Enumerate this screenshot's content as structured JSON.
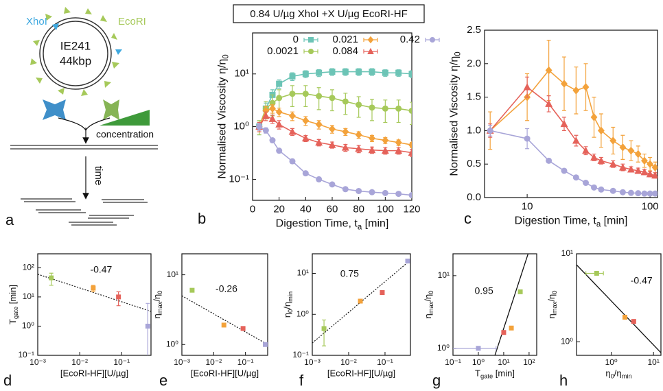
{
  "header": "0.84 U/µg XhoI +X U/µg EcoRI-HF",
  "diagram": {
    "label": "a",
    "xhoi": "XhoI",
    "ecori": "EcoRI",
    "plasmid": "IE241",
    "size": "44kbp",
    "concentration": "concentration",
    "time": "time"
  },
  "chart_data": [
    {
      "type": "line",
      "label": "b",
      "lines": true,
      "xlabel": [
        "Digestion Time, t",
        "a",
        " [min]"
      ],
      "ylabel": [
        "Normalised Viscosity η/η",
        "0"
      ],
      "x": [
        5,
        10,
        15,
        20,
        30,
        40,
        50,
        60,
        70,
        80,
        90,
        100,
        110,
        120
      ],
      "xlim": [
        0,
        120
      ],
      "xticks": [
        0,
        20,
        40,
        60,
        80,
        100,
        120
      ],
      "yscale": "log",
      "ylim": [
        0.04,
        60
      ],
      "yticks": [
        {
          "value": 0.1,
          "label": "10⁻¹"
        },
        {
          "value": 1,
          "label": "10⁰"
        },
        {
          "value": 10,
          "label": "10¹"
        }
      ],
      "legend": true,
      "series": [
        {
          "name": "0",
          "color": "#6cc4b6",
          "marker": "square",
          "values": [
            1,
            2.2,
            4,
            6.5,
            9,
            10,
            10.5,
            11,
            11,
            11,
            11,
            10.5,
            10.5,
            10
          ],
          "errors": [
            0.3,
            0.6,
            1,
            1.2,
            1.5,
            1.5,
            1.6,
            1.6,
            1.6,
            1.6,
            1.6,
            1.5,
            1.5,
            1.5
          ]
        },
        {
          "name": "0.0021",
          "color": "#a6c95a",
          "marker": "circle",
          "values": [
            1,
            2.2,
            2.8,
            3.5,
            4.2,
            4.2,
            3.8,
            3.5,
            3,
            2.6,
            2.3,
            2.2,
            2.2,
            2
          ],
          "errors": [
            0.3,
            0.8,
            1.2,
            1.5,
            1.8,
            1.8,
            1.7,
            1.5,
            1.3,
            1.1,
            1,
            1,
            1,
            0.9
          ]
        },
        {
          "name": "0.021",
          "color": "#f3a23b",
          "marker": "diamond",
          "values": [
            1,
            2,
            2.2,
            1.9,
            1.6,
            1.3,
            1.1,
            0.9,
            0.8,
            0.7,
            0.6,
            0.55,
            0.5,
            0.45
          ],
          "errors": [
            0.2,
            0.4,
            0.4,
            0.35,
            0.3,
            0.25,
            0.2,
            0.15,
            0.12,
            0.1,
            0.08,
            0.07,
            0.06,
            0.05
          ]
        },
        {
          "name": "0.084",
          "color": "#e5625a",
          "marker": "triangle",
          "values": [
            1,
            1.6,
            1.4,
            1.1,
            0.8,
            0.6,
            0.5,
            0.45,
            0.4,
            0.38,
            0.36,
            0.35,
            0.35,
            0.32
          ],
          "errors": [
            0.2,
            0.3,
            0.25,
            0.2,
            0.12,
            0.08,
            0.07,
            0.06,
            0.06,
            0.06,
            0.05,
            0.05,
            0.05,
            0.05
          ]
        },
        {
          "name": "0.42",
          "color": "#a8a5d8",
          "marker": "circle",
          "values": [
            1,
            0.85,
            0.55,
            0.35,
            0.22,
            0.13,
            0.1,
            0.08,
            0.065,
            0.06,
            0.057,
            0.055,
            0.053,
            0.05
          ],
          "errors": [
            0.15,
            0.1,
            0.05,
            0.03,
            0.02,
            0.01,
            0.008,
            0.006,
            0.005,
            0.005,
            0.004,
            0.004,
            0.004,
            0.004
          ]
        }
      ]
    },
    {
      "type": "line",
      "label": "c",
      "lines": true,
      "xlabel": [
        "Digestion Time, t",
        "a",
        " [min]"
      ],
      "ylabel": [
        "Normalised Viscosity η/η",
        "0"
      ],
      "x": [
        5,
        10,
        15,
        20,
        25,
        30,
        35,
        40,
        50,
        60,
        70,
        80,
        90,
        100,
        110
      ],
      "xscale": "log",
      "xlim": [
        4.5,
        115
      ],
      "xticks": [
        10,
        100
      ],
      "ylim": [
        0,
        2.5
      ],
      "yticks": [
        {
          "value": 0,
          "label": "0.0"
        },
        0.5,
        {
          "value": 1,
          "label": "1.0"
        },
        1.5,
        {
          "value": 2,
          "label": "2.0"
        },
        2.5
      ],
      "series": [
        {
          "color": "#f3a23b",
          "marker": "diamond",
          "values": [
            1,
            1.5,
            1.9,
            1.7,
            1.6,
            1.65,
            1.2,
            1,
            0.85,
            0.75,
            0.7,
            0.65,
            0.55,
            0.5,
            0.45
          ],
          "errors": [
            0.28,
            0.35,
            0.45,
            0.4,
            0.35,
            0.35,
            0.3,
            0.25,
            0.2,
            0.18,
            0.15,
            0.12,
            0.1,
            0.1,
            0.08
          ]
        },
        {
          "color": "#e5625a",
          "marker": "triangle",
          "values": [
            1,
            1.65,
            1.4,
            1.1,
            0.85,
            0.7,
            0.6,
            0.55,
            0.5,
            0.45,
            0.42,
            0.4,
            0.38,
            0.35,
            0.33
          ],
          "errors": [
            0.1,
            0.15,
            0.12,
            0.1,
            0.08,
            0.06,
            0.05,
            0.05,
            0.05,
            0.05,
            0.04,
            0.04,
            0.04,
            0.04,
            0.04
          ]
        },
        {
          "color": "#a8a5d8",
          "marker": "circle",
          "values": [
            1,
            0.88,
            0.55,
            0.4,
            0.3,
            0.22,
            0.15,
            0.12,
            0.1,
            0.08,
            0.07,
            0.065,
            0.06,
            0.06,
            0.06
          ],
          "errors": [
            0.08,
            0.15,
            0.03,
            0.02,
            0.02,
            0.01,
            0.01,
            0.01,
            0.01,
            0.01,
            0.01,
            0.01,
            0.01,
            0.01,
            0.01
          ]
        }
      ]
    },
    {
      "type": "scatter",
      "label": "d",
      "marker": "square",
      "xlabel": [
        "[EcoRI-HF][U/µg]"
      ],
      "ylabel": [
        "T",
        "gate",
        " [min]"
      ],
      "xscale": "log",
      "xlim": [
        0.001,
        0.5
      ],
      "xticks": [
        {
          "value": 0.001,
          "label": "10⁻³"
        },
        {
          "value": 0.01,
          "label": "10⁻²"
        },
        {
          "value": 0.1,
          "label": "10⁻¹"
        }
      ],
      "yscale": "log",
      "ylim": [
        0.1,
        300
      ],
      "yticks": [
        {
          "value": 0.1,
          "label": "10⁻¹"
        },
        {
          "value": 1,
          "label": "10⁰"
        },
        {
          "value": 10,
          "label": "10¹"
        },
        {
          "value": 100,
          "label": "10²"
        }
      ],
      "x": [
        0.0021,
        0.021,
        0.084,
        0.42
      ],
      "values": [
        45,
        20,
        10,
        1
      ],
      "errors": [
        20,
        5,
        5,
        5
      ],
      "colors": [
        "#a6c95a",
        "#f3a23b",
        "#e5625a",
        "#a8a5d8"
      ],
      "fit": {
        "x": [
          0.001,
          0.5
        ],
        "values": [
          60,
          3.2
        ]
      },
      "fit_style": "dotted",
      "annotation": "-0.47"
    },
    {
      "type": "scatter",
      "label": "e",
      "marker": "square",
      "xlabel": [
        "[EcoRI-HF][U/µg]"
      ],
      "ylabel": [
        "η",
        "max",
        "/η",
        "0"
      ],
      "xscale": "log",
      "xlim": [
        0.001,
        0.5
      ],
      "xticks": [
        {
          "value": 0.001,
          "label": "10⁻³"
        },
        {
          "value": 0.01,
          "label": "10⁻²"
        },
        {
          "value": 0.1,
          "label": "10⁻¹"
        }
      ],
      "yscale": "log",
      "ylim": [
        0.7,
        20
      ],
      "yticks": [
        {
          "value": 1,
          "label": "10⁰"
        },
        {
          "value": 10,
          "label": "10¹"
        }
      ],
      "x": [
        0.0021,
        0.021,
        0.084,
        0.42
      ],
      "values": [
        6,
        1.9,
        1.7,
        1
      ],
      "colors": [
        "#a6c95a",
        "#f3a23b",
        "#e5625a",
        "#a8a5d8"
      ],
      "fit": {
        "x": [
          0.001,
          0.5
        ],
        "values": [
          5,
          1
        ]
      },
      "fit_style": "dotted",
      "annotation": "-0.26"
    },
    {
      "type": "scatter",
      "label": "f",
      "marker": "square",
      "xlabel": [
        "[EcoRI-HF][U/µg]"
      ],
      "ylabel": [
        "η",
        "0",
        "/η",
        "min"
      ],
      "xscale": "log",
      "xlim": [
        0.001,
        0.5
      ],
      "xticks": [
        {
          "value": 0.001,
          "label": "10⁻³"
        },
        {
          "value": 0.01,
          "label": "10⁻²"
        },
        {
          "value": 0.1,
          "label": "10⁻¹"
        }
      ],
      "yscale": "log",
      "ylim": [
        0.1,
        30
      ],
      "yticks": [
        {
          "value": 0.1,
          "label": "10⁻¹"
        },
        {
          "value": 1,
          "label": "10⁰"
        },
        {
          "value": 10,
          "label": "10¹"
        }
      ],
      "x": [
        0.0021,
        0.021,
        0.084,
        0.42
      ],
      "values": [
        0.45,
        2.1,
        3.4,
        20
      ],
      "errors": [
        0.28,
        null,
        null,
        null
      ],
      "colors": [
        "#a6c95a",
        "#f3a23b",
        "#e5625a",
        "#a8a5d8"
      ],
      "fit": {
        "x": [
          0.001,
          0.5
        ],
        "values": [
          0.2,
          21
        ]
      },
      "fit_style": "dotted",
      "annotation": "0.75"
    },
    {
      "type": "scatter",
      "label": "g",
      "marker": "square",
      "xlabel": [
        "T",
        "gate",
        " [min]"
      ],
      "ylabel": [
        "η",
        "max",
        "/η",
        "0"
      ],
      "xscale": "log",
      "xlim": [
        0.1,
        200
      ],
      "xticks": [
        {
          "value": 0.1,
          "label": "10⁻¹"
        },
        {
          "value": 1,
          "label": "10⁰"
        },
        {
          "value": 10,
          "label": "10¹"
        },
        {
          "value": 100,
          "label": "10²"
        }
      ],
      "yscale": "log",
      "ylim": [
        0.8,
        20
      ],
      "yticks": [
        {
          "value": 1,
          "label": "10⁰"
        },
        {
          "value": 10,
          "label": "10¹"
        }
      ],
      "x": [
        1,
        10,
        20,
        45
      ],
      "values": [
        1,
        1.65,
        1.9,
        6
      ],
      "xerrors": [
        4,
        null,
        null,
        null
      ],
      "colors": [
        "#a8a5d8",
        "#e5625a",
        "#f3a23b",
        "#a6c95a"
      ],
      "fit": {
        "x": [
          4.5,
          100
        ],
        "values": [
          0.8,
          22
        ]
      },
      "fit_style": "solid",
      "annotation": "0.95"
    },
    {
      "type": "scatter",
      "label": "h",
      "marker": "square",
      "xlabel": [
        "η",
        "0",
        "/η",
        "min"
      ],
      "ylabel": [
        "η",
        "max",
        "/η",
        "0"
      ],
      "xscale": "log",
      "xlim": [
        0.15,
        15
      ],
      "xticks": [
        {
          "value": 1,
          "label": "10⁰"
        },
        {
          "value": 10,
          "label": "10¹"
        }
      ],
      "yscale": "log",
      "ylim": [
        0.7,
        10
      ],
      "yticks": [
        {
          "value": 1,
          "label": "10⁰"
        },
        {
          "value": 10,
          "label": "10¹"
        }
      ],
      "x": [
        0.45,
        2.1,
        3.4
      ],
      "values": [
        6,
        1.9,
        1.7
      ],
      "xerrors": [
        0.2,
        null,
        null
      ],
      "colors": [
        "#a6c95a",
        "#f3a23b",
        "#e5625a"
      ],
      "fit": {
        "x": [
          0.15,
          15
        ],
        "values": [
          7.5,
          0.75
        ]
      },
      "fit_style": "solid",
      "annotation": "-0.47"
    }
  ]
}
